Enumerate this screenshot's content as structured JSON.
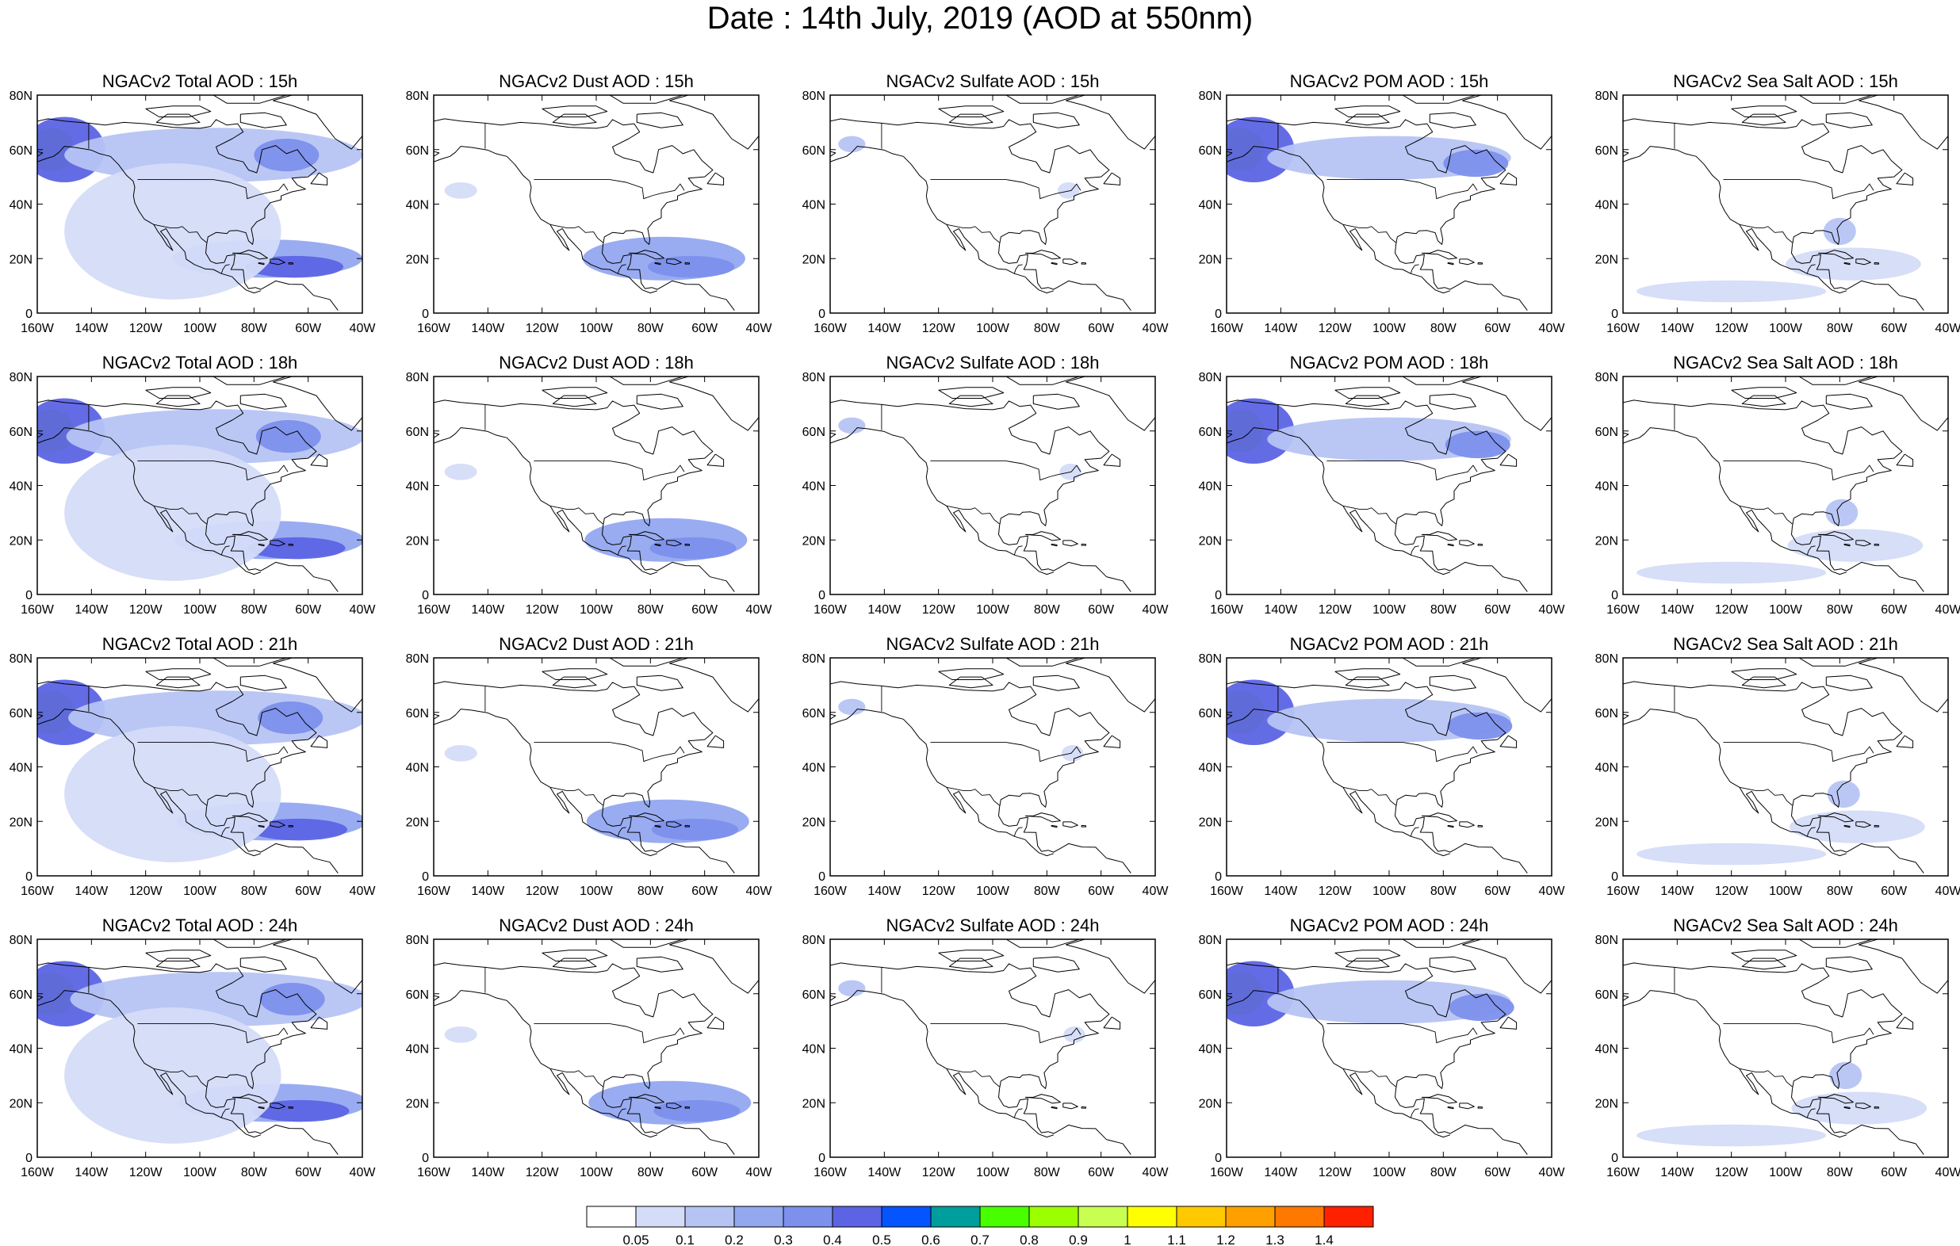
{
  "page": {
    "title": "Date : 14th July, 2019 (AOD at 550nm)"
  },
  "chart_data": {
    "type": "heatmap",
    "layout": {
      "rows": 4,
      "cols": 5
    },
    "x_axis": {
      "min": -160,
      "max": -40,
      "ticks": [
        -160,
        -140,
        -120,
        -100,
        -80,
        -60,
        -40
      ],
      "tick_labels": [
        "160W",
        "140W",
        "120W",
        "100W",
        "80W",
        "60W",
        "40W"
      ]
    },
    "y_axis": {
      "min": 0,
      "max": 80,
      "ticks": [
        0,
        20,
        40,
        60,
        80
      ],
      "tick_labels": [
        "0",
        "20N",
        "40N",
        "60N",
        "80N"
      ]
    },
    "species": [
      "total",
      "dust",
      "sulfate",
      "pom",
      "seasalt"
    ],
    "hours": [
      "15h",
      "18h",
      "21h",
      "24h"
    ],
    "panel_titles": [
      [
        "NGACv2 Total AOD : 15h",
        "NGACv2 Dust AOD : 15h",
        "NGACv2 Sulfate AOD : 15h",
        "NGACv2 POM AOD : 15h",
        "NGACv2 Sea Salt AOD : 15h"
      ],
      [
        "NGACv2 Total AOD : 18h",
        "NGACv2 Dust AOD : 18h",
        "NGACv2 Sulfate AOD : 18h",
        "NGACv2 POM AOD : 18h",
        "NGACv2 Sea Salt AOD : 18h"
      ],
      [
        "NGACv2 Total AOD : 21h",
        "NGACv2 Dust AOD : 21h",
        "NGACv2 Sulfate AOD : 21h",
        "NGACv2 POM AOD : 21h",
        "NGACv2 Sea Salt AOD : 21h"
      ],
      [
        "NGACv2 Total AOD : 24h",
        "NGACv2 Dust AOD : 24h",
        "NGACv2 Sulfate AOD : 24h",
        "NGACv2 POM AOD : 24h",
        "NGACv2 Sea Salt  AOD : 24h"
      ]
    ],
    "colorbar": {
      "levels": [
        "0.05",
        "0.1",
        "0.2",
        "0.3",
        "0.4",
        "0.5",
        "0.6",
        "0.7",
        "0.8",
        "0.9",
        "1",
        "1.1",
        "1.2",
        "1.3",
        "1.4"
      ],
      "colors": [
        "#ffffff",
        "#d4dcf8",
        "#b6c4f4",
        "#94a8f0",
        "#7c90ec",
        "#5c64e4",
        "#0454ff",
        "#009d9d",
        "#48ff00",
        "#9cff00",
        "#c8ff50",
        "#ffff00",
        "#ffc800",
        "#ffa000",
        "#ff7800",
        "#ff2000"
      ]
    },
    "features": {
      "total": [
        {
          "lon": -155,
          "lat": 60,
          "rx": 5,
          "ry": 5,
          "level": 14
        },
        {
          "lon": -155,
          "lat": 60,
          "rx": 9,
          "ry": 8,
          "level": 9
        },
        {
          "lon": -150,
          "lat": 60,
          "rx": 15,
          "ry": 12,
          "level": 5
        },
        {
          "lon": -95,
          "lat": 58,
          "rx": 55,
          "ry": 10,
          "level": 2
        },
        {
          "lon": -68,
          "lat": 58,
          "rx": 12,
          "ry": 6,
          "level": 4
        },
        {
          "lon": -75,
          "lat": 20,
          "rx": 35,
          "ry": 7,
          "level": 3
        },
        {
          "lon": -65,
          "lat": 17,
          "rx": 18,
          "ry": 4,
          "level": 5
        },
        {
          "lon": -110,
          "lat": 30,
          "rx": 40,
          "ry": 25,
          "level": 1
        }
      ],
      "dust": [
        {
          "lon": -75,
          "lat": 20,
          "rx": 30,
          "ry": 8,
          "level": 3
        },
        {
          "lon": -65,
          "lat": 17,
          "rx": 16,
          "ry": 4,
          "level": 4
        },
        {
          "lon": -150,
          "lat": 45,
          "rx": 6,
          "ry": 3,
          "level": 1
        }
      ],
      "sulfate": [
        {
          "lon": -152,
          "lat": 62,
          "rx": 5,
          "ry": 3,
          "level": 2
        },
        {
          "lon": -72,
          "lat": 45,
          "rx": 4,
          "ry": 3,
          "level": 1
        }
      ],
      "pom": [
        {
          "lon": -155,
          "lat": 60,
          "rx": 5,
          "ry": 5,
          "level": 14
        },
        {
          "lon": -155,
          "lat": 60,
          "rx": 9,
          "ry": 8,
          "level": 9
        },
        {
          "lon": -150,
          "lat": 60,
          "rx": 15,
          "ry": 12,
          "level": 5
        },
        {
          "lon": -100,
          "lat": 57,
          "rx": 45,
          "ry": 8,
          "level": 2
        },
        {
          "lon": -68,
          "lat": 55,
          "rx": 12,
          "ry": 5,
          "level": 4
        }
      ],
      "seasalt": [
        {
          "lon": -75,
          "lat": 18,
          "rx": 25,
          "ry": 6,
          "level": 1
        },
        {
          "lon": -120,
          "lat": 8,
          "rx": 35,
          "ry": 4,
          "level": 1
        },
        {
          "lon": -80,
          "lat": 30,
          "rx": 6,
          "ry": 5,
          "level": 2
        }
      ]
    }
  }
}
